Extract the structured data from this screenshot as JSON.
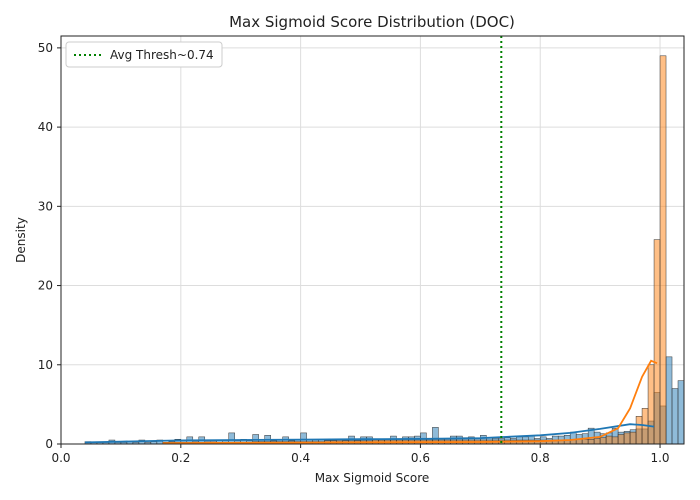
{
  "chart_data": {
    "type": "histogram",
    "title": "Max Sigmoid Score Distribution (DOC)",
    "xlabel": "Max Sigmoid Score",
    "ylabel": "Density",
    "xlim": [
      0.0,
      1.04
    ],
    "ylim": [
      0,
      51.5
    ],
    "x_ticks": [
      0.0,
      0.2,
      0.4,
      0.6,
      0.8,
      1.0
    ],
    "x_tick_labels": [
      "0.0",
      "0.2",
      "0.4",
      "0.6",
      "0.8",
      "1.0"
    ],
    "y_ticks": [
      0,
      10,
      20,
      30,
      40,
      50
    ],
    "y_tick_labels": [
      "0",
      "10",
      "20",
      "30",
      "40",
      "50"
    ],
    "grid": true,
    "legend_position": "top-left",
    "bin_width": 0.01,
    "vline": {
      "x": 0.735,
      "label": "Avg Thresh~0.74",
      "color": "#008000",
      "style": "dotted"
    },
    "series": [
      {
        "color": "#1f77b4",
        "bins_start": 0.04,
        "values": [
          0.3,
          0.2,
          0.2,
          0.2,
          0.5,
          0.2,
          0.2,
          0.3,
          0.2,
          0.5,
          0.2,
          0.3,
          0.5,
          0.2,
          0.3,
          0.6,
          0.4,
          0.9,
          0.3,
          0.9,
          0.3,
          0.3,
          0.5,
          0.4,
          1.4,
          0.4,
          0.6,
          0.4,
          1.2,
          0.5,
          1.1,
          0.4,
          0.5,
          0.9,
          0.4,
          0.6,
          1.4,
          0.6,
          0.5,
          0.6,
          0.5,
          0.5,
          0.4,
          0.5,
          1.0,
          0.5,
          0.9,
          0.9,
          0.6,
          0.5,
          0.6,
          1.0,
          0.6,
          0.9,
          0.9,
          1.0,
          1.4,
          0.6,
          2.1,
          0.6,
          0.7,
          1.0,
          1.0,
          0.8,
          0.9,
          0.7,
          1.1,
          0.8,
          0.7,
          0.7,
          0.8,
          0.7,
          0.9,
          0.9,
          1.1,
          0.7,
          0.9,
          0.7,
          1.0,
          1.0,
          1.1,
          1.5,
          1.2,
          1.3,
          2.0,
          1.5,
          1.3,
          1.4,
          2.0,
          1.5,
          1.6,
          1.8,
          1.9,
          1.9,
          2.9,
          6.5,
          4.8,
          11.0,
          7.0,
          8.0
        ],
        "kde": [
          [
            0.04,
            0.2
          ],
          [
            0.1,
            0.3
          ],
          [
            0.2,
            0.45
          ],
          [
            0.3,
            0.5
          ],
          [
            0.4,
            0.55
          ],
          [
            0.5,
            0.6
          ],
          [
            0.6,
            0.65
          ],
          [
            0.7,
            0.75
          ],
          [
            0.8,
            1.1
          ],
          [
            0.85,
            1.4
          ],
          [
            0.9,
            1.9
          ],
          [
            0.95,
            2.5
          ],
          [
            0.97,
            2.4
          ],
          [
            0.99,
            2.2
          ]
        ]
      },
      {
        "color": "#ff7f0e",
        "bins_start": 0.17,
        "values": [
          0.2,
          0.2,
          0.2,
          0.2,
          0.2,
          0.2,
          0.2,
          0.2,
          0.2,
          0.2,
          0.2,
          0.2,
          0.2,
          0.2,
          0.2,
          0.3,
          0.3,
          0.3,
          0.3,
          0.3,
          0.3,
          0.3,
          0.3,
          0.3,
          0.3,
          0.3,
          0.3,
          0.4,
          0.4,
          0.4,
          0.4,
          0.4,
          0.4,
          0.4,
          0.4,
          0.5,
          0.5,
          0.5,
          0.5,
          0.5,
          0.5,
          0.5,
          0.5,
          0.5,
          0.5,
          0.5,
          0.5,
          0.5,
          0.5,
          0.5,
          0.5,
          0.5,
          0.5,
          0.5,
          0.5,
          0.5,
          0.5,
          0.5,
          0.5,
          0.5,
          0.5,
          0.5,
          0.5,
          0.5,
          0.5,
          0.5,
          0.5,
          0.5,
          0.6,
          0.6,
          0.6,
          0.6,
          0.7,
          0.8,
          1.0,
          0.9,
          1.2,
          1.4,
          1.5,
          3.5,
          4.5,
          10.0,
          25.8,
          49.0
        ],
        "kde": [
          [
            0.17,
            0.1
          ],
          [
            0.3,
            0.15
          ],
          [
            0.5,
            0.2
          ],
          [
            0.7,
            0.25
          ],
          [
            0.8,
            0.35
          ],
          [
            0.85,
            0.5
          ],
          [
            0.9,
            0.9
          ],
          [
            0.93,
            2.0
          ],
          [
            0.95,
            4.5
          ],
          [
            0.97,
            8.5
          ],
          [
            0.985,
            10.5
          ],
          [
            0.995,
            10.2
          ]
        ]
      }
    ]
  }
}
